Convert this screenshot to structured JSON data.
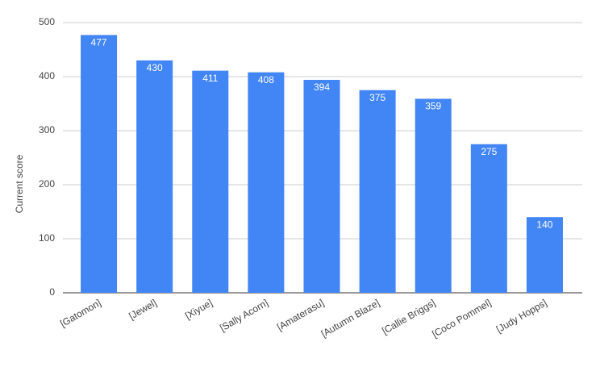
{
  "chart_data": {
    "type": "bar",
    "y_label": "Current score",
    "categories": [
      "[Gatomon]",
      "[Jewel]",
      "[Xiyue]",
      "[Sally Acorn]",
      "[Amaterasu]",
      "[Autumn Blaze]",
      "[Callie Briggs]",
      "[Coco Pommel]",
      "[Judy Hopps]"
    ],
    "values": [
      477,
      430,
      411,
      408,
      394,
      375,
      359,
      275,
      140
    ],
    "color": "#4285f4",
    "ylim": [
      0,
      500
    ],
    "yticks": [
      0,
      100,
      200,
      300,
      400,
      500
    ],
    "grid": true
  }
}
